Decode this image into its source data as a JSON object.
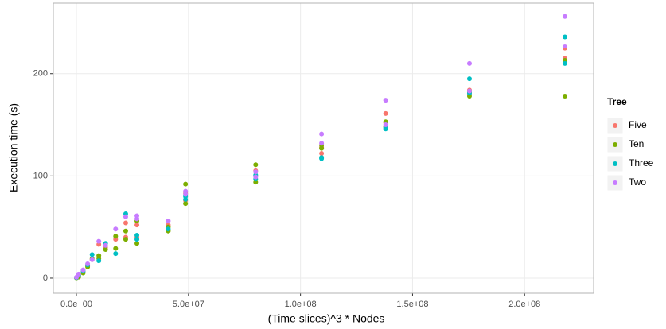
{
  "chart_data": {
    "type": "scatter",
    "xlabel": "(Time slices)^3 * Nodes",
    "ylabel": "Execution time (s)",
    "legend_title": "Tree",
    "legend_position": "right",
    "grid": true,
    "xlim": [
      -10300000,
      230800000
    ],
    "ylim": [
      -14.8,
      269
    ],
    "xticks": [
      {
        "value": 0,
        "label": "0.0e+00"
      },
      {
        "value": 50000000,
        "label": "5.0e+07"
      },
      {
        "value": 100000000,
        "label": "1.0e+08"
      },
      {
        "value": 150000000,
        "label": "1.5e+08"
      },
      {
        "value": 200000000,
        "label": "2.0e+08"
      }
    ],
    "yticks": [
      0,
      100,
      200
    ],
    "series": [
      {
        "name": "Five",
        "color": "#F8766D",
        "x": [
          0,
          1000000,
          3000000,
          5000000,
          7000000,
          10000000,
          13000000,
          17500000,
          22000000,
          22000000,
          27000000,
          27000000,
          41000000,
          48700000,
          48700000,
          80000000,
          80000000,
          109400000,
          109400000,
          138000000,
          138000000,
          175400000,
          175400000,
          218000000,
          218000000
        ],
        "values": [
          0.5,
          2,
          6,
          12,
          18,
          33,
          30,
          38,
          54,
          40,
          52,
          40,
          52,
          83,
          76,
          105,
          100,
          122,
          128,
          161,
          152,
          184,
          180,
          225,
          215
        ]
      },
      {
        "name": "Ten",
        "color": "#7CAE00",
        "x": [
          0,
          1000000,
          3000000,
          5000000,
          7000000,
          10000000,
          10000000,
          13000000,
          17500000,
          17500000,
          22000000,
          22000000,
          27000000,
          27000000,
          41000000,
          41000000,
          48700000,
          48700000,
          80000000,
          80000000,
          109400000,
          109400000,
          138000000,
          138000000,
          175400000,
          175400000,
          218000000,
          218000000
        ],
        "values": [
          0.3,
          1,
          5,
          11,
          19,
          19,
          22,
          28,
          41,
          29,
          46,
          38,
          56,
          34,
          46,
          50,
          92,
          73,
          111,
          94,
          127,
          130,
          153,
          148,
          182,
          178,
          213,
          178
        ]
      },
      {
        "name": "Three",
        "color": "#00BFC4",
        "x": [
          0,
          1000000,
          3000000,
          5000000,
          7000000,
          10000000,
          13000000,
          17500000,
          22000000,
          27000000,
          27000000,
          41000000,
          48700000,
          48700000,
          80000000,
          80000000,
          109400000,
          109400000,
          138000000,
          138000000,
          175400000,
          175400000,
          218000000,
          218000000
        ],
        "values": [
          0.6,
          3,
          7,
          13,
          23,
          17,
          34,
          24,
          63,
          42,
          38,
          48,
          80,
          77,
          101,
          97,
          117,
          118,
          147,
          146,
          195,
          181,
          236,
          210
        ]
      },
      {
        "name": "Two",
        "color": "#C77CFF",
        "x": [
          0,
          1000000,
          3000000,
          5000000,
          7000000,
          10000000,
          13000000,
          17500000,
          22000000,
          27000000,
          27000000,
          41000000,
          48700000,
          48700000,
          80000000,
          80000000,
          109400000,
          109400000,
          138000000,
          138000000,
          175400000,
          175400000,
          218000000,
          218000000
        ],
        "values": [
          0.8,
          4,
          8,
          14,
          18,
          36,
          32,
          48,
          60,
          61,
          58,
          56,
          82,
          85,
          104,
          99,
          141,
          132,
          174,
          150,
          210,
          183,
          256,
          227
        ]
      }
    ]
  }
}
